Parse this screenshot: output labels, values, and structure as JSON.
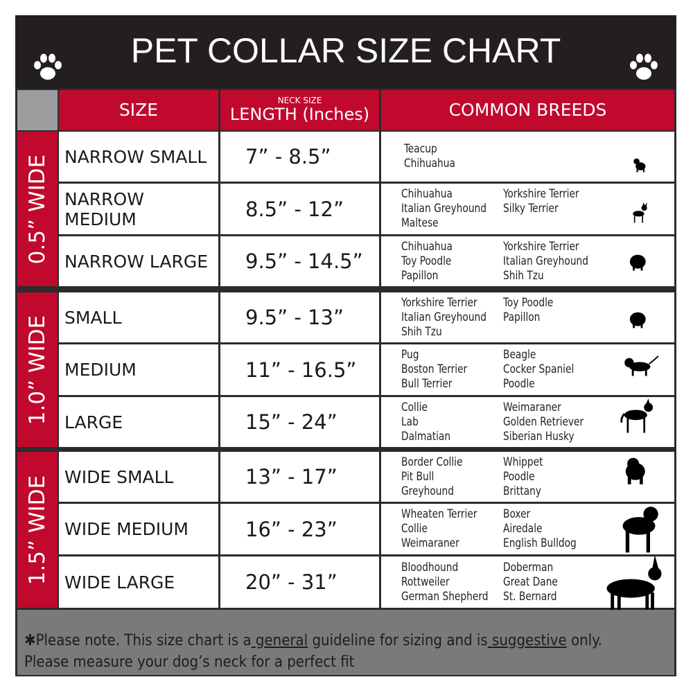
{
  "title": "PET COLLAR SIZE CHART",
  "icons": {
    "left": "paw-print-icon",
    "right": "paw-print-icon",
    "row": "dog-silhouette-icon"
  },
  "colors": {
    "header_bg": "#231f20",
    "accent_red": "#c0092d",
    "footer_bg": "#7a7a7c"
  },
  "headers": {
    "size": "SIZE",
    "length_small": "NECK SIZE",
    "length": "LENGTH (Inches)",
    "breeds": "COMMON BREEDS"
  },
  "groups": [
    {
      "label": "0.5” WIDE"
    },
    {
      "label": "1.0” WIDE"
    },
    {
      "label": "1.5” WIDE"
    }
  ],
  "rows": [
    {
      "size": "NARROW SMALL",
      "length": "7” - 8.5”",
      "col1": [
        "Teacup",
        "Chihuahua"
      ],
      "col2": []
    },
    {
      "size": "NARROW MEDIUM",
      "length": "8.5” - 12”",
      "col1": [
        "Chihuahua",
        "Italian Greyhound",
        "Maltese"
      ],
      "col2": [
        "Yorkshire Terrier",
        "Silky Terrier"
      ]
    },
    {
      "size": "NARROW LARGE",
      "length": "9.5” - 14.5”",
      "col1": [
        "Chihuahua",
        "Toy Poodle",
        "Papillon"
      ],
      "col2": [
        "Yorkshire Terrier",
        "Italian Greyhound",
        "Shih Tzu"
      ]
    },
    {
      "size": "SMALL",
      "length": "9.5” - 13”",
      "col1": [
        "Yorkshire Terrier",
        "Italian Greyhound",
        "Shih Tzu"
      ],
      "col2": [
        "Toy Poodle",
        "Papillon"
      ]
    },
    {
      "size": "MEDIUM",
      "length": "11” - 16.5”",
      "col1": [
        "Pug",
        "Boston Terrier",
        "Bull Terrier"
      ],
      "col2": [
        "Beagle",
        "Cocker Spaniel",
        "Poodle"
      ]
    },
    {
      "size": "LARGE",
      "length": "15” - 24”",
      "col1": [
        "Collie",
        "Lab",
        "Dalmatian"
      ],
      "col2": [
        "Weimaraner",
        "Golden Retriever",
        "Siberian Husky"
      ]
    },
    {
      "size": "WIDE SMALL",
      "length": "13” - 17”",
      "col1": [
        "Border Collie",
        "Pit Bull",
        "Greyhound"
      ],
      "col2": [
        "Whippet",
        "Poodle",
        "Brittany"
      ]
    },
    {
      "size": "WIDE MEDIUM",
      "length": "16” - 23”",
      "col1": [
        "Wheaten Terrier",
        "Collie",
        "Weimaraner"
      ],
      "col2": [
        "Boxer",
        "Airedale",
        "English Bulldog"
      ]
    },
    {
      "size": "WIDE LARGE",
      "length": "20” - 31”",
      "col1": [
        "Bloodhound",
        "Rottweiler",
        "German Shepherd"
      ],
      "col2": [
        "Doberman",
        "Great Dane",
        "St. Bernard"
      ]
    }
  ],
  "footer": {
    "l1a": "✱Please note. This size chart is a",
    "l1b": " general",
    "l1c": " guideline for sizing and is",
    "l1d": " suggestive",
    "l1e": " only.",
    "l2": "Please measure your dog’s neck for a perfect fit"
  }
}
